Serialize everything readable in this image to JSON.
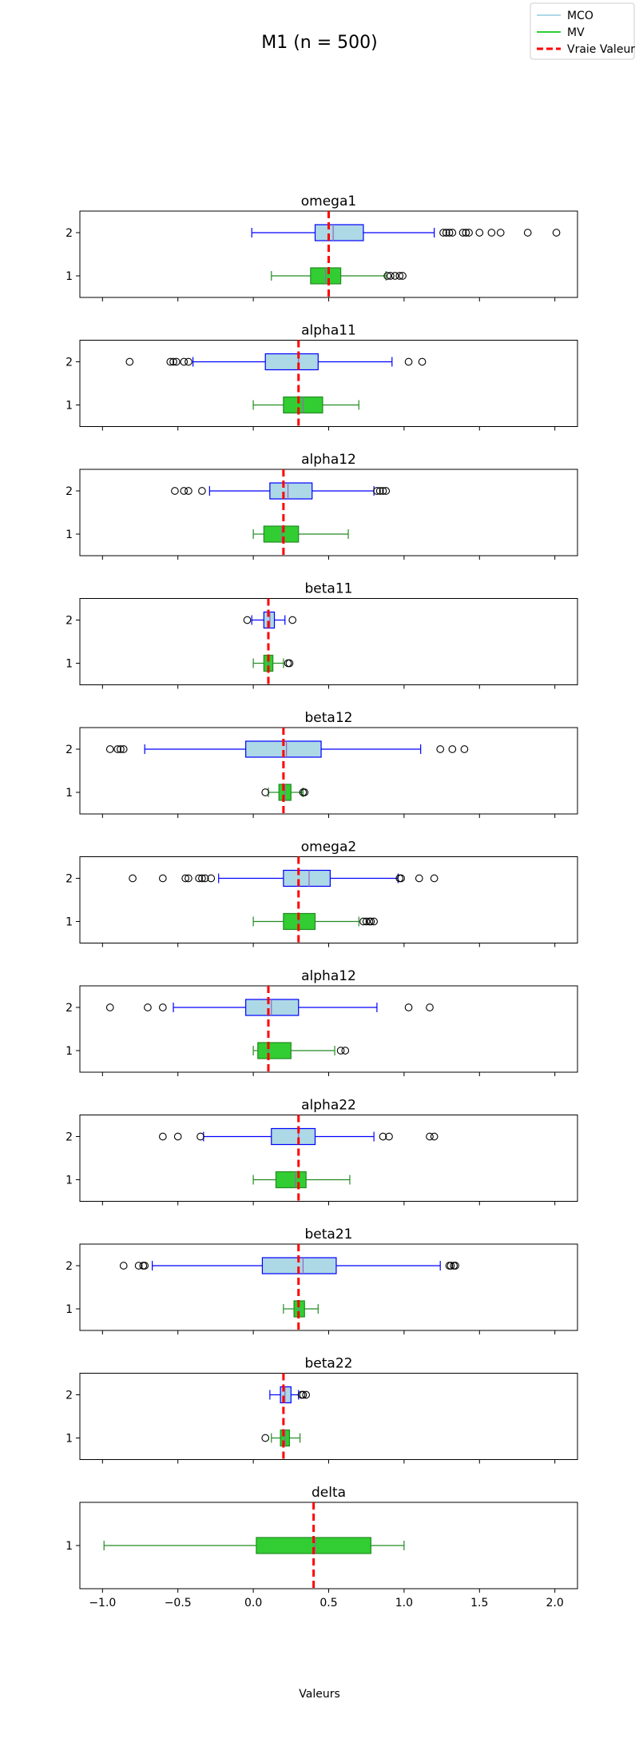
{
  "figure": {
    "title": "M1 (n = 500)",
    "xlabel": "Valeurs"
  },
  "legend": {
    "placement": "top-right",
    "items": [
      {
        "label": "MCO",
        "color": "#add8e6",
        "style": "solid"
      },
      {
        "label": "MV",
        "color": "#32cd32",
        "style": "solid"
      },
      {
        "label": "Vraie Valeur",
        "color": "#ff0000",
        "style": "dashed"
      }
    ]
  },
  "colors": {
    "mco_fill": "#add8e6",
    "mco_edge": "#0000ff",
    "mv_fill": "#32cd32",
    "mv_edge": "#228b22",
    "median": "#9467bd",
    "true_value": "#ff0000"
  },
  "chart_data": {
    "type": "boxplot",
    "xlim": [
      -1.15,
      2.15
    ],
    "xticks": [
      -1.0,
      -0.5,
      0.0,
      0.5,
      1.0,
      1.5,
      2.0
    ],
    "xtick_labels": [
      "−1.0",
      "−0.5",
      "0.0",
      "0.5",
      "1.0",
      "1.5",
      "2.0"
    ],
    "shared_x": true,
    "panels": [
      {
        "title": "omega1",
        "true_value": 0.5,
        "boxes": [
          {
            "label": "1",
            "series": "MV",
            "whislo": 0.12,
            "q1": 0.38,
            "med": 0.48,
            "q3": 0.58,
            "whishi": 0.88,
            "fliers": [
              0.89,
              0.91,
              0.94,
              0.97,
              0.99
            ]
          },
          {
            "label": "2",
            "series": "MCO",
            "whislo": -0.01,
            "q1": 0.41,
            "med": 0.53,
            "q3": 0.73,
            "whishi": 1.2,
            "fliers": [
              1.26,
              1.28,
              1.3,
              1.32,
              1.39,
              1.41,
              1.43,
              1.5,
              1.58,
              1.64,
              1.82,
              2.01
            ]
          }
        ]
      },
      {
        "title": "alpha11",
        "true_value": 0.3,
        "boxes": [
          {
            "label": "1",
            "series": "MV",
            "whislo": 0.0,
            "q1": 0.2,
            "med": 0.33,
            "q3": 0.46,
            "whishi": 0.7,
            "fliers": []
          },
          {
            "label": "2",
            "series": "MCO",
            "whislo": -0.4,
            "q1": 0.08,
            "med": 0.3,
            "q3": 0.43,
            "whishi": 0.92,
            "fliers": [
              -0.82,
              -0.55,
              -0.53,
              -0.51,
              -0.46,
              -0.43,
              1.03,
              1.12
            ]
          }
        ]
      },
      {
        "title": "alpha12",
        "true_value": 0.2,
        "boxes": [
          {
            "label": "1",
            "series": "MV",
            "whislo": 0.0,
            "q1": 0.07,
            "med": 0.19,
            "q3": 0.3,
            "whishi": 0.63,
            "fliers": []
          },
          {
            "label": "2",
            "series": "MCO",
            "whislo": -0.29,
            "q1": 0.11,
            "med": 0.23,
            "q3": 0.39,
            "whishi": 0.8,
            "fliers": [
              -0.52,
              -0.46,
              -0.43,
              -0.34,
              0.82,
              0.84,
              0.86,
              0.88
            ]
          }
        ]
      },
      {
        "title": "beta11",
        "true_value": 0.1,
        "boxes": [
          {
            "label": "1",
            "series": "MV",
            "whislo": 0.0,
            "q1": 0.07,
            "med": 0.1,
            "q3": 0.13,
            "whishi": 0.2,
            "fliers": [
              0.23,
              0.24
            ]
          },
          {
            "label": "2",
            "series": "MCO",
            "whislo": -0.01,
            "q1": 0.07,
            "med": 0.11,
            "q3": 0.14,
            "whishi": 0.21,
            "fliers": [
              -0.04,
              0.26
            ]
          }
        ]
      },
      {
        "title": "beta12",
        "true_value": 0.2,
        "boxes": [
          {
            "label": "1",
            "series": "MV",
            "whislo": 0.1,
            "q1": 0.17,
            "med": 0.21,
            "q3": 0.25,
            "whishi": 0.33,
            "fliers": [
              0.08,
              0.33,
              0.34
            ]
          },
          {
            "label": "2",
            "series": "MCO",
            "whislo": -0.72,
            "q1": -0.05,
            "med": 0.22,
            "q3": 0.45,
            "whishi": 1.11,
            "fliers": [
              -0.95,
              -0.9,
              -0.88,
              -0.86,
              1.24,
              1.32,
              1.4
            ]
          }
        ]
      },
      {
        "title": "omega2",
        "true_value": 0.3,
        "boxes": [
          {
            "label": "1",
            "series": "MV",
            "whislo": 0.0,
            "q1": 0.2,
            "med": 0.3,
            "q3": 0.41,
            "whishi": 0.7,
            "fliers": [
              0.73,
              0.75,
              0.77,
              0.78,
              0.8
            ]
          },
          {
            "label": "2",
            "series": "MCO",
            "whislo": -0.23,
            "q1": 0.2,
            "med": 0.37,
            "q3": 0.51,
            "whishi": 0.96,
            "fliers": [
              -0.8,
              -0.6,
              -0.45,
              -0.43,
              -0.36,
              -0.34,
              -0.32,
              -0.28,
              0.97,
              0.98,
              1.1,
              1.2
            ]
          }
        ]
      },
      {
        "title": "alpha12",
        "true_value": 0.1,
        "boxes": [
          {
            "label": "1",
            "series": "MV",
            "whislo": 0.0,
            "q1": 0.03,
            "med": 0.1,
            "q3": 0.25,
            "whishi": 0.54,
            "fliers": [
              0.58,
              0.61
            ]
          },
          {
            "label": "2",
            "series": "MCO",
            "whislo": -0.53,
            "q1": -0.05,
            "med": 0.12,
            "q3": 0.3,
            "whishi": 0.82,
            "fliers": [
              -0.95,
              -0.7,
              -0.6,
              1.03,
              1.17
            ]
          }
        ]
      },
      {
        "title": "alpha22",
        "true_value": 0.3,
        "boxes": [
          {
            "label": "1",
            "series": "MV",
            "whislo": 0.0,
            "q1": 0.15,
            "med": 0.28,
            "q3": 0.35,
            "whishi": 0.64,
            "fliers": []
          },
          {
            "label": "2",
            "series": "MCO",
            "whislo": -0.33,
            "q1": 0.12,
            "med": 0.3,
            "q3": 0.41,
            "whishi": 0.8,
            "fliers": [
              -0.6,
              -0.5,
              -0.35,
              0.86,
              0.9,
              1.17,
              1.2
            ]
          }
        ]
      },
      {
        "title": "beta21",
        "true_value": 0.3,
        "boxes": [
          {
            "label": "1",
            "series": "MV",
            "whislo": 0.2,
            "q1": 0.27,
            "med": 0.3,
            "q3": 0.34,
            "whishi": 0.43,
            "fliers": []
          },
          {
            "label": "2",
            "series": "MCO",
            "whislo": -0.67,
            "q1": 0.06,
            "med": 0.33,
            "q3": 0.55,
            "whishi": 1.24,
            "fliers": [
              -0.86,
              -0.76,
              -0.73,
              -0.72,
              1.3,
              1.31,
              1.33,
              1.34
            ]
          }
        ]
      },
      {
        "title": "beta22",
        "true_value": 0.2,
        "boxes": [
          {
            "label": "1",
            "series": "MV",
            "whislo": 0.12,
            "q1": 0.18,
            "med": 0.21,
            "q3": 0.24,
            "whishi": 0.31,
            "fliers": [
              0.08
            ]
          },
          {
            "label": "2",
            "series": "MCO",
            "whislo": 0.11,
            "q1": 0.18,
            "med": 0.21,
            "q3": 0.25,
            "whishi": 0.3,
            "fliers": [
              0.32,
              0.33,
              0.35
            ]
          }
        ]
      },
      {
        "title": "delta",
        "true_value": 0.4,
        "boxes": [
          {
            "label": "1",
            "series": "MV",
            "whislo": -0.99,
            "q1": 0.02,
            "med": 0.41,
            "q3": 0.78,
            "whishi": 1.0,
            "fliers": []
          }
        ]
      }
    ]
  }
}
